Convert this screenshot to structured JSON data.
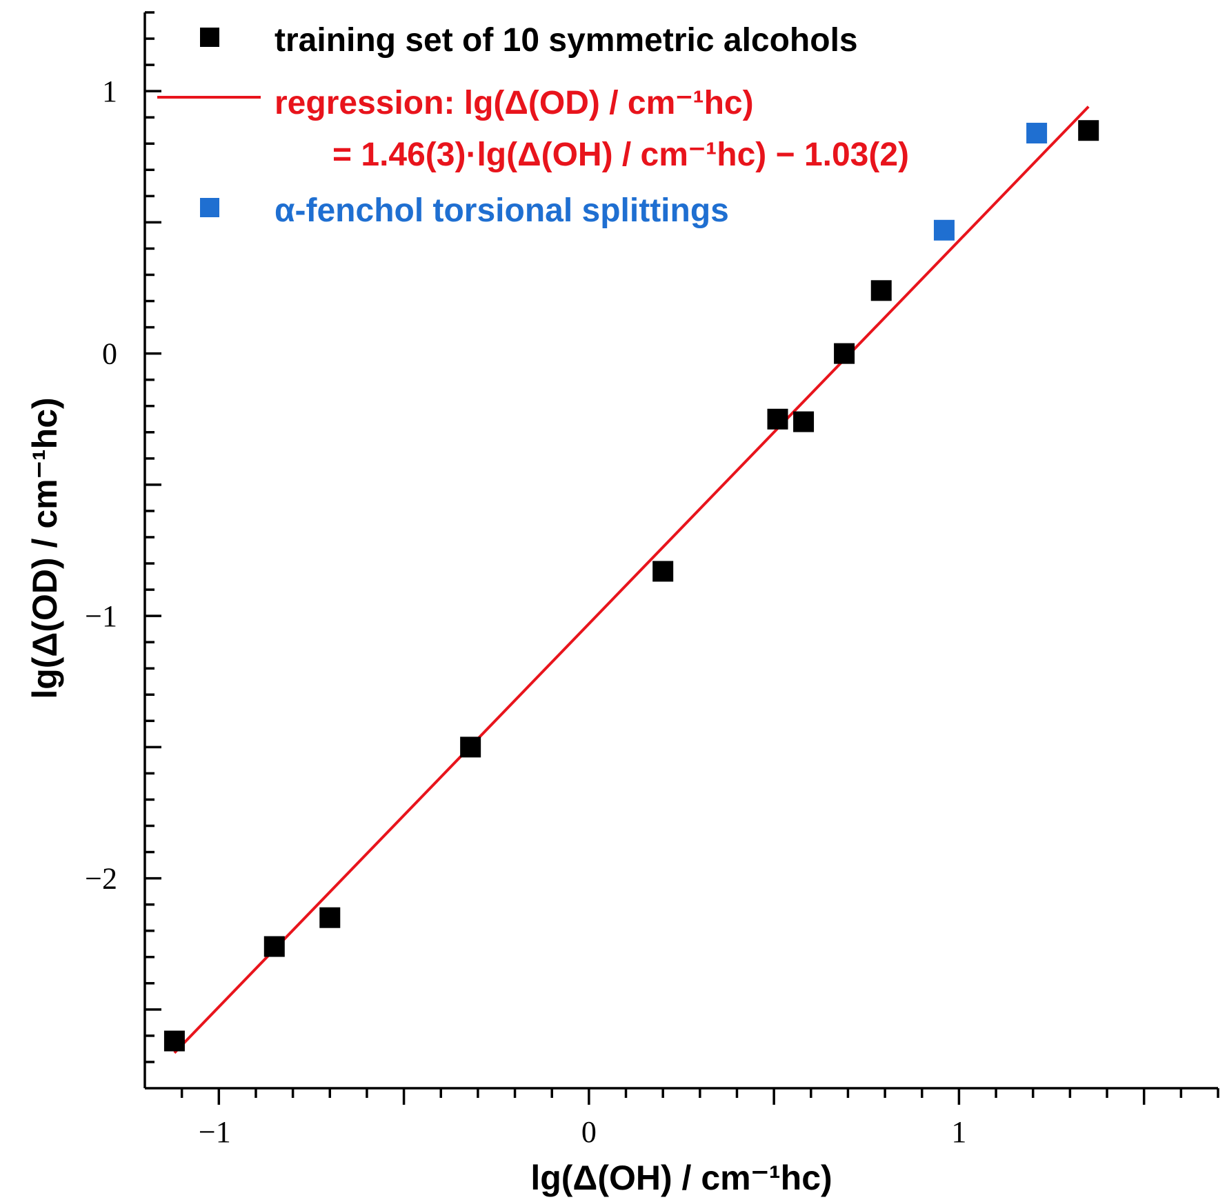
{
  "chart_data": {
    "type": "scatter",
    "xlabel": "lg(Δ(OH) / cm⁻¹hc)",
    "ylabel": "lg(Δ(OD) / cm⁻¹hc)",
    "xlim": [
      -1.2,
      1.7
    ],
    "ylim": [
      -2.8,
      1.3
    ],
    "x_tick_labels": [
      {
        "value": -1,
        "label": "−1"
      },
      {
        "value": 0,
        "label": "0"
      },
      {
        "value": 1,
        "label": "1"
      }
    ],
    "y_tick_labels": [
      {
        "value": 1,
        "label": "1"
      },
      {
        "value": 0,
        "label": "0"
      },
      {
        "value": -1,
        "label": "−1"
      },
      {
        "value": -2,
        "label": "−2"
      }
    ],
    "minor_x_step": 0.1,
    "minor_y_step": 0.1,
    "series": [
      {
        "name": "training set of 10 symmetric alcohols",
        "color": "#000000",
        "marker": "square",
        "x": [
          -1.12,
          -0.85,
          -0.7,
          -0.32,
          0.2,
          0.51,
          0.58,
          0.69,
          0.79,
          1.35
        ],
        "y": [
          -2.62,
          -2.26,
          -2.15,
          -1.5,
          -0.83,
          -0.25,
          -0.26,
          0.0,
          0.24,
          0.85
        ]
      },
      {
        "name": "α-fenchol torsional splittings",
        "color": "#1f6fd1",
        "marker": "square",
        "x": [
          0.96,
          1.21
        ],
        "y": [
          0.47,
          0.84
        ]
      }
    ],
    "regression": {
      "color": "#e8141c",
      "slope": 1.46,
      "intercept": -1.03,
      "x_range": [
        -1.12,
        1.35
      ]
    },
    "legend": {
      "placement": "top-left",
      "training_label": "training set of 10 symmetric alcohols",
      "regression_line1": "regression: lg(Δ(OD) / cm⁻¹hc)",
      "regression_line2": "= 1.46(3)·lg(Δ(OH) / cm⁻¹hc) − 1.03(2)",
      "fenchol_label": "α-fenchol torsional splittings"
    }
  }
}
